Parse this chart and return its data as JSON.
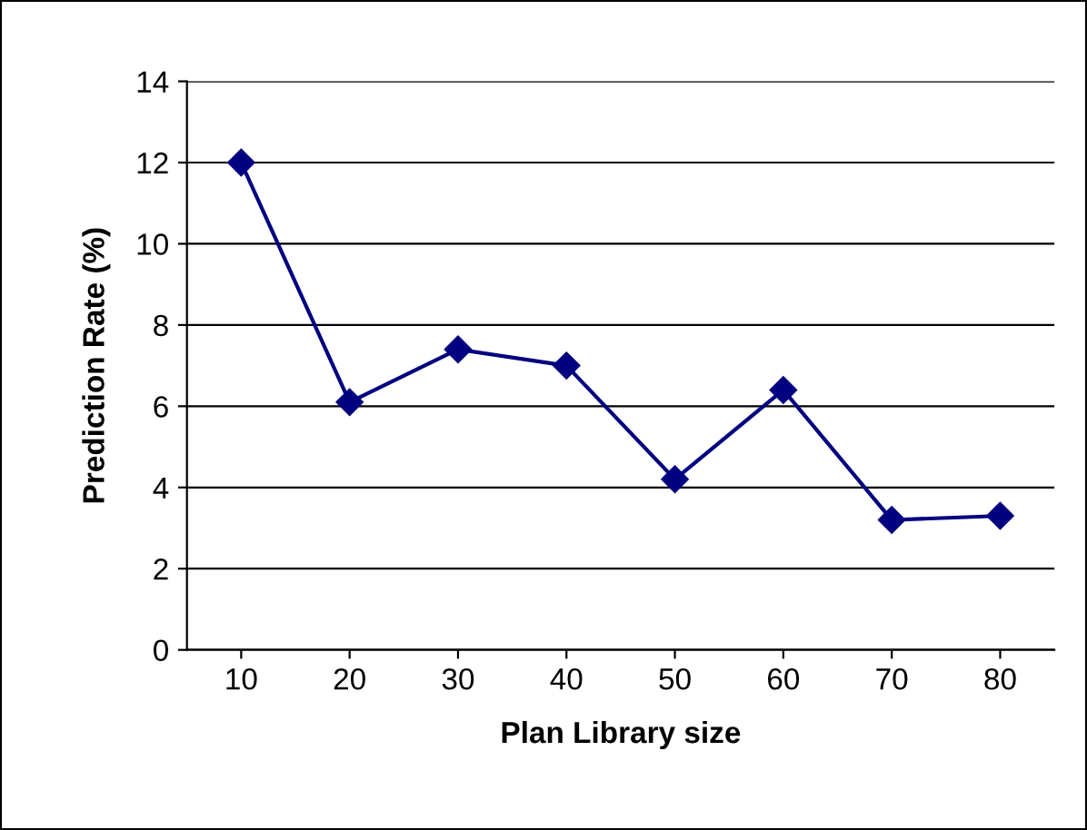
{
  "chart_data": {
    "type": "line",
    "xlabel": "Plan Library size",
    "ylabel": "Prediction Rate (%)",
    "categories": [
      "10",
      "20",
      "30",
      "40",
      "50",
      "60",
      "70",
      "80"
    ],
    "series": [
      {
        "color": "#000080",
        "values": [
          12,
          6.1,
          7.4,
          7.0,
          4.2,
          6.4,
          3.2,
          3.3
        ]
      }
    ],
    "ylim": [
      0,
      14
    ],
    "yticks": [
      0,
      2,
      4,
      6,
      8,
      10,
      12,
      14
    ],
    "grid": "y",
    "marker": "diamond",
    "line_style": "solid"
  }
}
